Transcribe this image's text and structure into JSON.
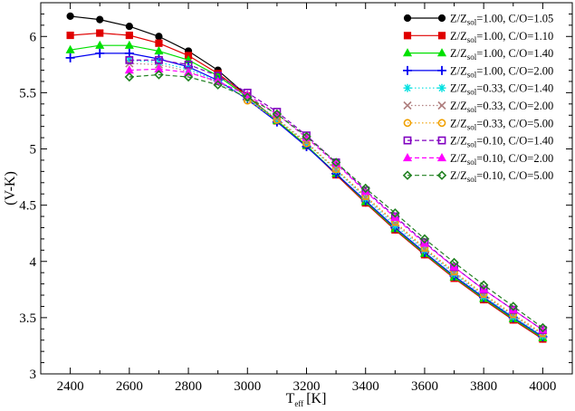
{
  "chart_data": {
    "type": "line",
    "xlabel": "T",
    "xlabel_sub": "eff",
    "xlabel_unit": "[K]",
    "ylabel": "(V-K)",
    "xlim": [
      2300,
      4100
    ],
    "ylim": [
      3,
      6.3
    ],
    "xticks": [
      "2400",
      "2600",
      "2800",
      "3000",
      "3200",
      "3400",
      "3600",
      "3800",
      "4000"
    ],
    "yticks": [
      "3",
      "3.5",
      "4",
      "4.5",
      "5",
      "5.5",
      "6"
    ],
    "legend_position": "top-right",
    "series": [
      {
        "name": "Z/Z_sol=1.00, C/O=1.05",
        "label_main": "Z/Z",
        "label_sub": "sol",
        "label_rest": "=1.00, C/O=1.05",
        "color": "#000000",
        "marker": "circle",
        "dash": "solid",
        "x": [
          2400,
          2500,
          2600,
          2700,
          2800,
          2900,
          3000,
          3100,
          3200,
          3300,
          3400,
          3500,
          3600,
          3700,
          3800,
          3900,
          4000
        ],
        "y": [
          6.18,
          6.15,
          6.09,
          6.0,
          5.87,
          5.7,
          5.47,
          5.25,
          5.03,
          4.78,
          4.52,
          4.28,
          4.06,
          3.86,
          3.66,
          3.48,
          3.31
        ]
      },
      {
        "name": "Z/Z_sol=1.00, C/O=1.10",
        "label_main": "Z/Z",
        "label_sub": "sol",
        "label_rest": "=1.00, C/O=1.10",
        "color": "#e00000",
        "marker": "square",
        "dash": "solid",
        "x": [
          2400,
          2500,
          2600,
          2700,
          2800,
          2900,
          3000,
          3100,
          3200,
          3300,
          3400,
          3500,
          3600,
          3700,
          3800,
          3900,
          4000
        ],
        "y": [
          6.01,
          6.03,
          6.01,
          5.94,
          5.83,
          5.67,
          5.47,
          5.25,
          5.03,
          4.77,
          4.52,
          4.28,
          4.06,
          3.85,
          3.66,
          3.48,
          3.31
        ]
      },
      {
        "name": "Z/Z_sol=1.00, C/O=1.40",
        "label_main": "Z/Z",
        "label_sub": "sol",
        "label_rest": "=1.00, C/O=1.40",
        "color": "#00e000",
        "marker": "triangle",
        "dash": "solid",
        "x": [
          2400,
          2500,
          2600,
          2700,
          2800,
          2900,
          3000,
          3100,
          3200,
          3300,
          3400,
          3500,
          3600,
          3700,
          3800,
          3900,
          4000
        ],
        "y": [
          5.88,
          5.92,
          5.92,
          5.87,
          5.79,
          5.65,
          5.46,
          5.25,
          5.03,
          4.78,
          4.53,
          4.29,
          4.07,
          3.86,
          3.67,
          3.49,
          3.32
        ]
      },
      {
        "name": "Z/Z_sol=1.00, C/O=2.00",
        "label_main": "Z/Z",
        "label_sub": "sol",
        "label_rest": "=1.00, C/O=2.00",
        "color": "#0000f0",
        "marker": "plus",
        "dash": "solid",
        "x": [
          2400,
          2500,
          2600,
          2700,
          2800,
          2900,
          3000,
          3100,
          3200,
          3300,
          3400,
          3500,
          3600,
          3700,
          3800,
          3900,
          4000
        ],
        "y": [
          5.81,
          5.85,
          5.85,
          5.8,
          5.73,
          5.61,
          5.44,
          5.24,
          5.02,
          4.78,
          4.54,
          4.3,
          4.08,
          3.87,
          3.68,
          3.5,
          3.33
        ]
      },
      {
        "name": "Z/Z_sol=0.33, C/O=1.40",
        "label_main": "Z/Z",
        "label_sub": "sol",
        "label_rest": "=0.33, C/O=1.40",
        "color": "#00e0e0",
        "marker": "asterisk",
        "dash": "dot",
        "x": [
          2600,
          2700,
          2800,
          2900,
          3000,
          3100,
          3200,
          3300,
          3400,
          3500,
          3600,
          3700,
          3800,
          3900,
          4000
        ],
        "y": [
          5.79,
          5.77,
          5.71,
          5.6,
          5.45,
          5.26,
          5.05,
          4.81,
          4.56,
          4.32,
          4.1,
          3.89,
          3.69,
          3.51,
          3.34
        ]
      },
      {
        "name": "Z/Z_sol=0.33, C/O=2.00",
        "label_main": "Z/Z",
        "label_sub": "sol",
        "label_rest": "=0.33, C/O=2.00",
        "color": "#b08080",
        "marker": "cross",
        "dash": "dot",
        "x": [
          2600,
          2700,
          2800,
          2900,
          3000,
          3100,
          3200,
          3300,
          3400,
          3500,
          3600,
          3700,
          3800,
          3900,
          4000
        ],
        "y": [
          5.76,
          5.75,
          5.69,
          5.59,
          5.45,
          5.27,
          5.06,
          4.82,
          4.57,
          4.34,
          4.11,
          3.9,
          3.7,
          3.52,
          3.35
        ]
      },
      {
        "name": "Z/Z_sol=0.33, C/O=5.00",
        "label_main": "Z/Z",
        "label_sub": "sol",
        "label_rest": "=0.33, C/O=5.00",
        "color": "#f0a000",
        "marker": "circle-open",
        "dash": "dot",
        "x": [
          3000,
          3100,
          3200,
          3300,
          3400,
          3500,
          3600,
          3700,
          3800,
          3900,
          4000
        ],
        "y": [
          5.43,
          5.26,
          5.05,
          4.82,
          4.58,
          4.35,
          4.12,
          3.91,
          3.71,
          3.53,
          3.36
        ]
      },
      {
        "name": "Z/Z_sol=0.10, C/O=1.40",
        "label_main": "Z/Z",
        "label_sub": "sol",
        "label_rest": "=0.10, C/O=1.40",
        "color": "#8000c0",
        "marker": "square-open",
        "dash": "dash",
        "x": [
          2600,
          2700,
          2800,
          2900,
          3000,
          3100,
          3200,
          3300,
          3400,
          3500,
          3600,
          3700,
          3800,
          3900,
          4000
        ],
        "y": [
          5.79,
          5.79,
          5.75,
          5.65,
          5.5,
          5.33,
          5.12,
          4.88,
          4.63,
          4.4,
          4.17,
          3.95,
          3.75,
          3.57,
          3.39
        ]
      },
      {
        "name": "Z/Z_sol=0.10, C/O=2.00",
        "label_main": "Z/Z",
        "label_sub": "sol",
        "label_rest": "=0.10, C/O=2.00",
        "color": "#ff00ff",
        "marker": "triangle",
        "dash": "dash",
        "x": [
          2600,
          2700,
          2800,
          2900,
          3000,
          3100,
          3200,
          3300,
          3400,
          3500,
          3600,
          3700,
          3800,
          3900,
          4000
        ],
        "y": [
          5.7,
          5.71,
          5.68,
          5.6,
          5.48,
          5.31,
          5.1,
          4.87,
          4.62,
          4.39,
          4.16,
          3.95,
          3.75,
          3.57,
          3.39
        ]
      },
      {
        "name": "Z/Z_sol=0.10, C/O=5.00",
        "label_main": "Z/Z",
        "label_sub": "sol",
        "label_rest": "=0.10, C/O=5.00",
        "color": "#208020",
        "marker": "diamond-open",
        "dash": "dash",
        "x": [
          2600,
          2700,
          2800,
          2900,
          3000,
          3100,
          3200,
          3300,
          3400,
          3500,
          3600,
          3700,
          3800,
          3900,
          4000
        ],
        "y": [
          5.64,
          5.66,
          5.64,
          5.57,
          5.46,
          5.31,
          5.11,
          4.88,
          4.65,
          4.43,
          4.2,
          3.99,
          3.79,
          3.6,
          3.41
        ]
      }
    ]
  }
}
